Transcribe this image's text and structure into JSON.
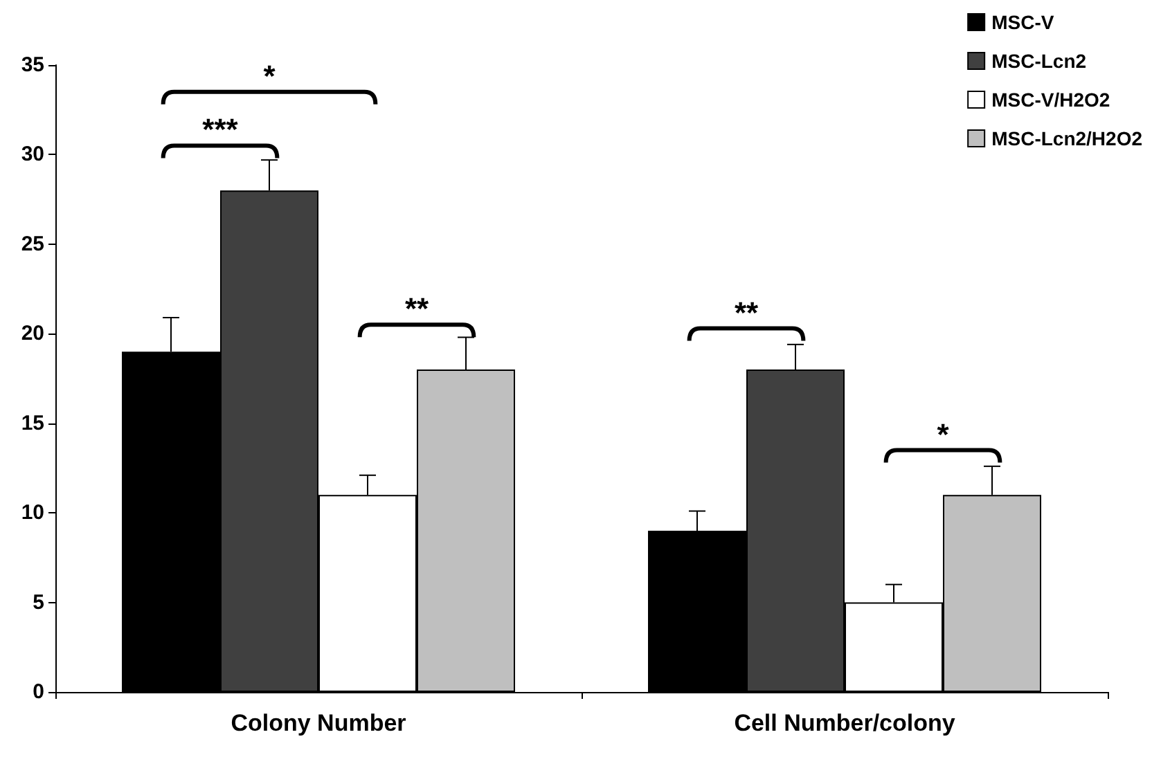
{
  "chart_data": {
    "type": "bar",
    "categories": [
      "Colony Number",
      "Cell Number/colony"
    ],
    "series": [
      {
        "name": "MSC-V",
        "color": "#000000",
        "values": [
          19,
          9
        ],
        "errors": [
          [
            19,
            20.9
          ],
          [
            9,
            10.1
          ]
        ]
      },
      {
        "name": "MSC-Lcn2",
        "color": "#404040",
        "values": [
          28,
          18
        ],
        "errors": [
          [
            28,
            29.7
          ],
          [
            18,
            19.4
          ]
        ]
      },
      {
        "name": "MSC-V/H2O2",
        "color": "#ffffff",
        "values": [
          11,
          5
        ],
        "errors": [
          [
            11,
            12.1
          ],
          [
            5,
            6
          ]
        ]
      },
      {
        "name": "MSC-Lcn2/H2O2",
        "color": "#bfbfbf",
        "values": [
          18,
          11
        ],
        "errors": [
          [
            18,
            19.8
          ],
          [
            11,
            12.6
          ]
        ]
      }
    ],
    "ylim": [
      0,
      35
    ],
    "yticks": [
      0,
      5,
      10,
      15,
      20,
      25,
      30,
      35
    ],
    "annotations": [
      "*",
      "***",
      "**",
      "**",
      "*"
    ],
    "grid": false,
    "legend": "top right"
  }
}
